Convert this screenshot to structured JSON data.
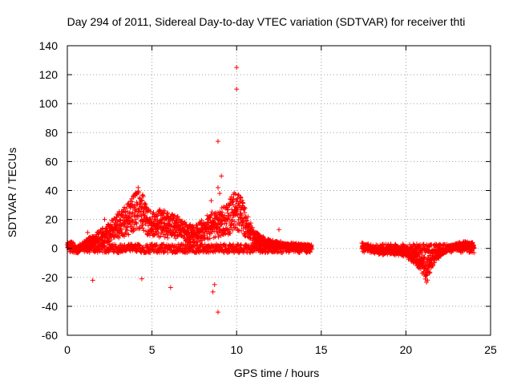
{
  "chart_data": {
    "type": "scatter",
    "title": "Day 294 of 2011, Sidereal Day-to-day VTEC variation (SDTVAR) for receiver thti",
    "xlabel": "GPS time / hours",
    "ylabel": "SDTVAR / TECUs",
    "xlim": [
      0,
      25
    ],
    "ylim": [
      -60,
      140
    ],
    "xticks": [
      0,
      5,
      10,
      15,
      20,
      25
    ],
    "yticks": [
      -60,
      -40,
      -20,
      0,
      20,
      40,
      60,
      80,
      100,
      120,
      140
    ],
    "grid": true,
    "marker": "plus",
    "color": "#ff0000",
    "segments": [
      {
        "name": "main-trace",
        "x_range": [
          0,
          14.4
        ],
        "y": [
          [
            0,
            2
          ],
          [
            0.3,
            3
          ],
          [
            0.6,
            -2
          ],
          [
            1.0,
            4
          ],
          [
            1.5,
            6
          ],
          [
            2.0,
            10
          ],
          [
            2.5,
            14
          ],
          [
            3.0,
            20
          ],
          [
            3.5,
            24
          ],
          [
            4.0,
            32
          ],
          [
            4.2,
            36
          ],
          [
            4.5,
            30
          ],
          [
            5.0,
            20
          ],
          [
            5.5,
            22
          ],
          [
            6.0,
            20
          ],
          [
            6.5,
            18
          ],
          [
            7.0,
            14
          ],
          [
            7.5,
            12
          ],
          [
            8.0,
            16
          ],
          [
            8.5,
            20
          ],
          [
            9.0,
            22
          ],
          [
            9.5,
            26
          ],
          [
            10.0,
            34
          ],
          [
            10.3,
            28
          ],
          [
            10.6,
            20
          ],
          [
            11.0,
            10
          ],
          [
            11.5,
            6
          ],
          [
            12.0,
            4
          ],
          [
            12.5,
            3
          ],
          [
            13.0,
            2
          ],
          [
            13.5,
            2
          ],
          [
            14.0,
            1
          ],
          [
            14.4,
            1
          ]
        ]
      },
      {
        "name": "afternoon-trace",
        "x_range": [
          17.4,
          24.0
        ],
        "y": [
          [
            17.4,
            2
          ],
          [
            17.8,
            0
          ],
          [
            18.2,
            -2
          ],
          [
            18.6,
            -3
          ],
          [
            19.0,
            -2
          ],
          [
            19.5,
            -3
          ],
          [
            20.0,
            -4
          ],
          [
            20.5,
            -8
          ],
          [
            21.0,
            -14
          ],
          [
            21.2,
            -20
          ],
          [
            21.5,
            -10
          ],
          [
            22.0,
            -4
          ],
          [
            22.5,
            0
          ],
          [
            23.0,
            2
          ],
          [
            23.5,
            3
          ],
          [
            24.0,
            2
          ]
        ]
      }
    ],
    "outliers": [
      [
        10.0,
        125
      ],
      [
        10.0,
        110
      ],
      [
        8.9,
        74
      ],
      [
        9.1,
        50
      ],
      [
        8.9,
        42
      ],
      [
        9.0,
        38
      ],
      [
        8.5,
        33
      ],
      [
        8.7,
        -25
      ],
      [
        8.6,
        -30
      ],
      [
        8.9,
        -44
      ],
      [
        6.1,
        -27
      ],
      [
        4.4,
        -21
      ],
      [
        1.5,
        -22
      ],
      [
        12.5,
        13
      ],
      [
        2.2,
        20
      ],
      [
        1.2,
        11
      ]
    ]
  }
}
